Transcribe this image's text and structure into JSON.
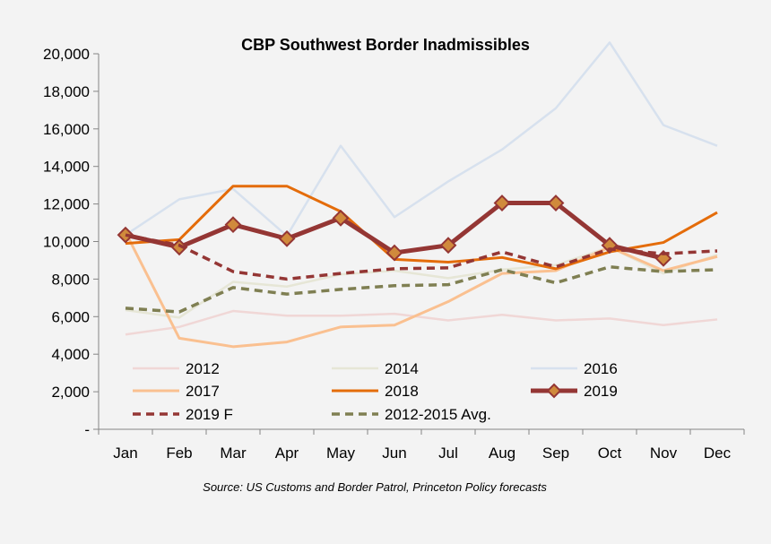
{
  "chart_data": {
    "type": "line",
    "title": "CBP Southwest Border Inadmissibles",
    "source": "Source: US Customs and Border Patrol, Princeton Policy forecasts",
    "categories": [
      "Jan",
      "Feb",
      "Mar",
      "Apr",
      "May",
      "Jun",
      "Jul",
      "Aug",
      "Sep",
      "Oct",
      "Nov",
      "Dec"
    ],
    "ylim": [
      0,
      20000
    ],
    "y_ticks": [
      0,
      2000,
      4000,
      6000,
      8000,
      10000,
      12000,
      14000,
      16000,
      18000,
      20000
    ],
    "y_tick_labels": [
      "-",
      "2,000",
      "4,000",
      "6,000",
      "8,000",
      "10,000",
      "12,000",
      "14,000",
      "16,000",
      "18,000",
      "20,000"
    ],
    "grid": false,
    "legend_position": "bottom-inside",
    "series": [
      {
        "name": "2012",
        "color": "#f0d7d6",
        "style": "solid",
        "values": [
          5050,
          5450,
          6300,
          6050,
          6050,
          6150,
          5800,
          6100,
          5800,
          5900,
          5550,
          5850
        ]
      },
      {
        "name": "2014",
        "color": "#e6e6d6",
        "style": "solid",
        "values": [
          6350,
          5950,
          7850,
          7600,
          8250,
          8450,
          8050,
          8500,
          8750,
          9700,
          8300,
          9300
        ]
      },
      {
        "name": "2016",
        "color": "#d7e1ee",
        "style": "solid",
        "values": [
          10350,
          12250,
          12800,
          10300,
          15100,
          11300,
          13200,
          14900,
          17100,
          20600,
          16200,
          15100
        ]
      },
      {
        "name": "2017",
        "color": "#fac090",
        "style": "solid",
        "values": [
          10500,
          4850,
          4400,
          4650,
          5450,
          5550,
          6800,
          8300,
          8450,
          9700,
          8450,
          9200
        ]
      },
      {
        "name": "2018",
        "color": "#e46c0a",
        "style": "solid",
        "values": [
          9900,
          10100,
          12950,
          12950,
          11600,
          9050,
          8900,
          9150,
          8550,
          9450,
          9950,
          11550
        ]
      },
      {
        "name": "2019",
        "color": "#943634",
        "style": "solid-markers",
        "values": [
          10350,
          9700,
          10900,
          10150,
          11250,
          9400,
          9800,
          12050,
          12050,
          9800,
          9100,
          null
        ]
      },
      {
        "name": "2019 F",
        "color": "#943634",
        "style": "dashed",
        "values": [
          10350,
          9800,
          8400,
          8000,
          8300,
          8550,
          8600,
          9450,
          8650,
          9600,
          9350,
          9500
        ]
      },
      {
        "name": "2012-2015 Avg.",
        "color": "#7f7f52",
        "style": "dashed",
        "values": [
          6450,
          6250,
          7550,
          7200,
          7450,
          7650,
          7700,
          8500,
          7800,
          8650,
          8400,
          8500
        ]
      }
    ]
  }
}
